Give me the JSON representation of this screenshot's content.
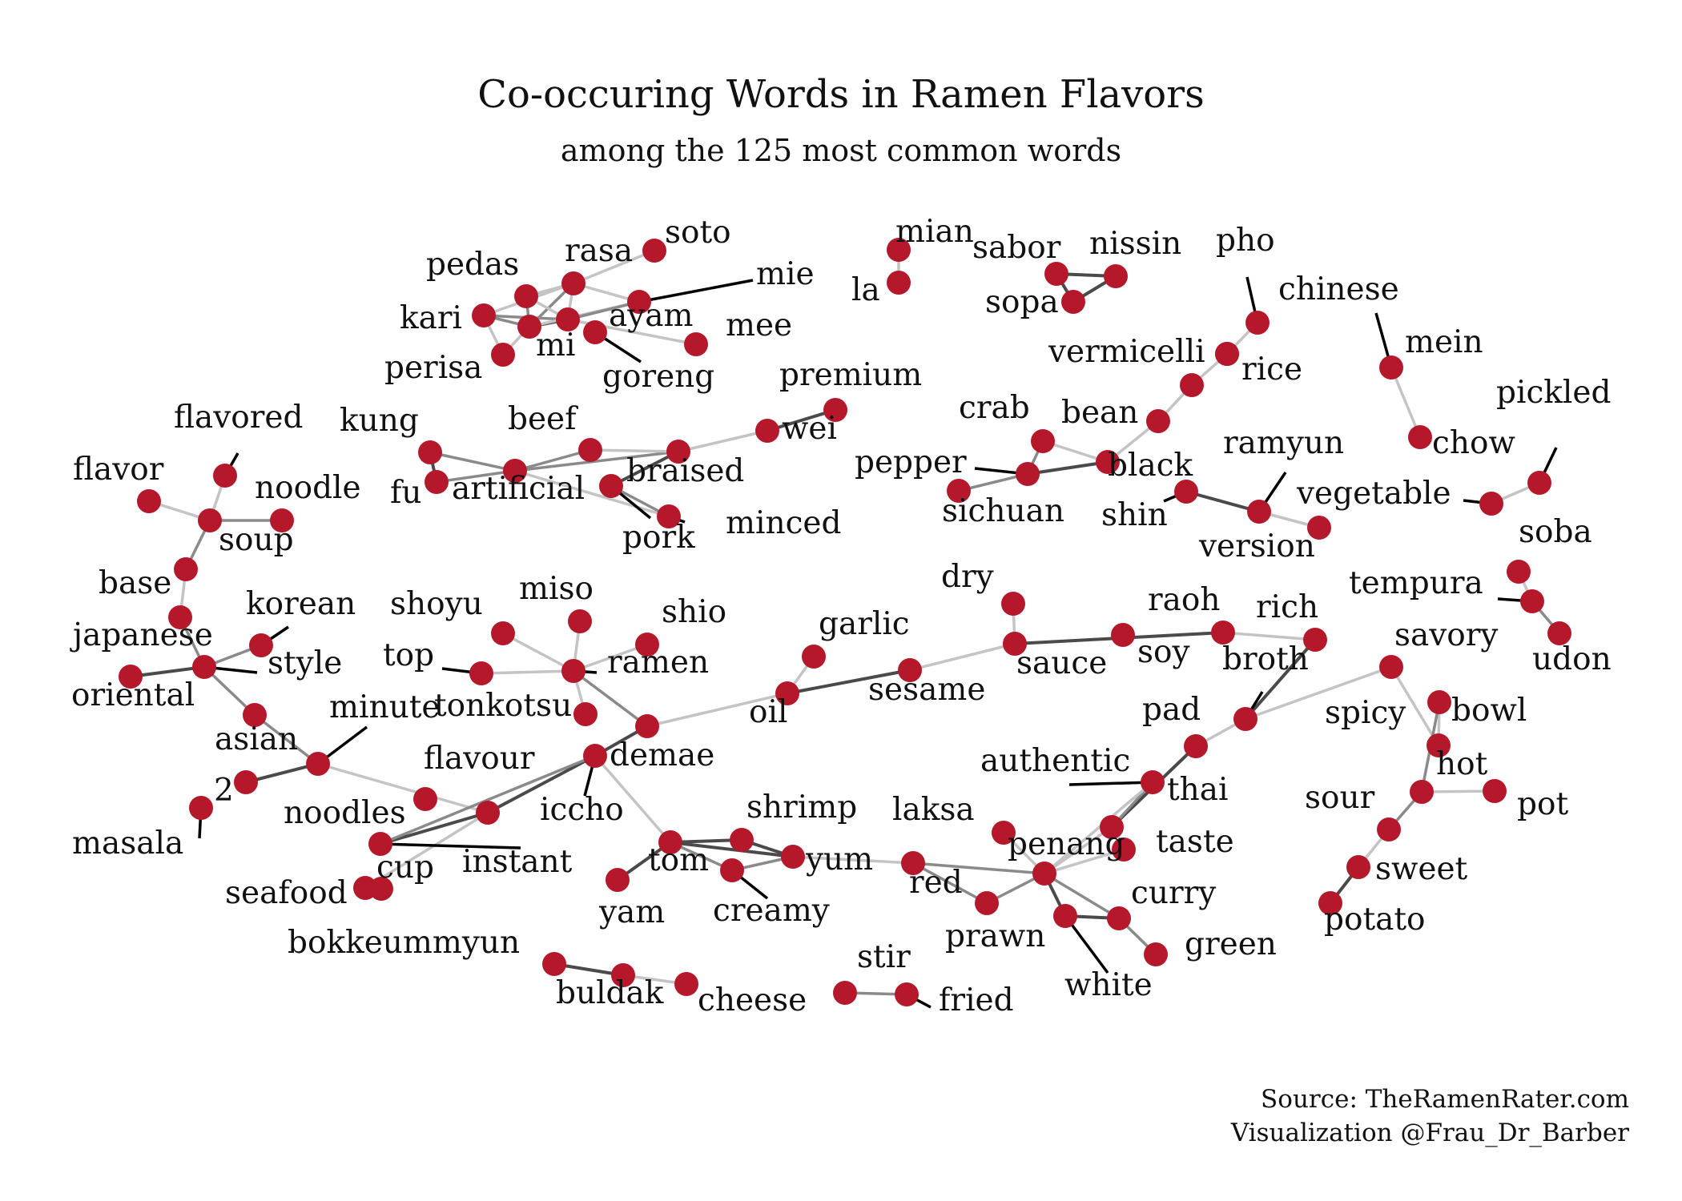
{
  "title": "Co-occuring Words in Ramen Flavors",
  "subtitle": "among the 125 most common words",
  "source": "Source: TheRamenRater.com",
  "credit": "Visualization @Frau_Dr_Barber",
  "colors": {
    "node": "#b5182b",
    "edge_dark": "#4a4a4a",
    "edge_mid": "#8a8a8a",
    "edge_light": "#c4c4c4",
    "leader": "#000000",
    "text": "#111111"
  },
  "nodes": [
    {
      "id": "soto",
      "label": "soto"
    },
    {
      "id": "rasa",
      "label": "rasa"
    },
    {
      "id": "pedas",
      "label": "pedas"
    },
    {
      "id": "mie",
      "label": "mie"
    },
    {
      "id": "kari",
      "label": "kari"
    },
    {
      "id": "ayam",
      "label": "ayam"
    },
    {
      "id": "mee",
      "label": "mee"
    },
    {
      "id": "mi",
      "label": "mi"
    },
    {
      "id": "perisa",
      "label": "perisa"
    },
    {
      "id": "goreng",
      "label": "goreng"
    },
    {
      "id": "mian",
      "label": "mian"
    },
    {
      "id": "la",
      "label": "la"
    },
    {
      "id": "sabor",
      "label": "sabor"
    },
    {
      "id": "nissin",
      "label": "nissin"
    },
    {
      "id": "sopa",
      "label": "sopa"
    },
    {
      "id": "pho",
      "label": "pho"
    },
    {
      "id": "chinese",
      "label": "chinese"
    },
    {
      "id": "vermicelli",
      "label": "vermicelli"
    },
    {
      "id": "rice",
      "label": "rice"
    },
    {
      "id": "mein",
      "label": "mein"
    },
    {
      "id": "chow",
      "label": "chow"
    },
    {
      "id": "premium",
      "label": "premium"
    },
    {
      "id": "wei",
      "label": "wei"
    },
    {
      "id": "flavored",
      "label": "flavored"
    },
    {
      "id": "kung",
      "label": "kung"
    },
    {
      "id": "beef",
      "label": "beef"
    },
    {
      "id": "fu",
      "label": "fu"
    },
    {
      "id": "artificial",
      "label": "artificial"
    },
    {
      "id": "braised",
      "label": "braised"
    },
    {
      "id": "pork",
      "label": "pork"
    },
    {
      "id": "minced",
      "label": "minced"
    },
    {
      "id": "crab",
      "label": "crab"
    },
    {
      "id": "bean",
      "label": "bean"
    },
    {
      "id": "pepper",
      "label": "pepper"
    },
    {
      "id": "black",
      "label": "black"
    },
    {
      "id": "sichuan",
      "label": "sichuan"
    },
    {
      "id": "ramyun",
      "label": "ramyun"
    },
    {
      "id": "shin",
      "label": "shin"
    },
    {
      "id": "version",
      "label": "version"
    },
    {
      "id": "pickled",
      "label": "pickled"
    },
    {
      "id": "vegetable",
      "label": "vegetable"
    },
    {
      "id": "flavor",
      "label": "flavor"
    },
    {
      "id": "noodle",
      "label": "noodle"
    },
    {
      "id": "soup",
      "label": "soup"
    },
    {
      "id": "base",
      "label": "base"
    },
    {
      "id": "japanese",
      "label": "japanese"
    },
    {
      "id": "korean",
      "label": "korean"
    },
    {
      "id": "style",
      "label": "style"
    },
    {
      "id": "oriental",
      "label": "oriental"
    },
    {
      "id": "asian",
      "label": "asian"
    },
    {
      "id": "minute",
      "label": "minute"
    },
    {
      "id": "2",
      "label": "2"
    },
    {
      "id": "masala",
      "label": "masala"
    },
    {
      "id": "shoyu",
      "label": "shoyu"
    },
    {
      "id": "miso",
      "label": "miso"
    },
    {
      "id": "shio",
      "label": "shio"
    },
    {
      "id": "top",
      "label": "top"
    },
    {
      "id": "ramen",
      "label": "ramen"
    },
    {
      "id": "tonkotsu",
      "label": "tonkotsu"
    },
    {
      "id": "demae",
      "label": "demae"
    },
    {
      "id": "iccho",
      "label": "iccho"
    },
    {
      "id": "flavour",
      "label": "flavour"
    },
    {
      "id": "noodles",
      "label": "noodles"
    },
    {
      "id": "instant",
      "label": "instant"
    },
    {
      "id": "cup",
      "label": "cup"
    },
    {
      "id": "seafood",
      "label": "seafood"
    },
    {
      "id": "garlic",
      "label": "garlic"
    },
    {
      "id": "oil",
      "label": "oil"
    },
    {
      "id": "sesame",
      "label": "sesame"
    },
    {
      "id": "dry",
      "label": "dry"
    },
    {
      "id": "sauce",
      "label": "sauce"
    },
    {
      "id": "raoh",
      "label": "raoh"
    },
    {
      "id": "soy",
      "label": "soy"
    },
    {
      "id": "rich",
      "label": "rich"
    },
    {
      "id": "broth",
      "label": "broth"
    },
    {
      "id": "soba",
      "label": "soba"
    },
    {
      "id": "tempura",
      "label": "tempura"
    },
    {
      "id": "udon",
      "label": "udon"
    },
    {
      "id": "savory",
      "label": "savory"
    },
    {
      "id": "spicy",
      "label": "spicy"
    },
    {
      "id": "bowl",
      "label": "bowl"
    },
    {
      "id": "hot",
      "label": "hot"
    },
    {
      "id": "pot",
      "label": "pot"
    },
    {
      "id": "sour",
      "label": "sour"
    },
    {
      "id": "sweet",
      "label": "sweet"
    },
    {
      "id": "potato",
      "label": "potato"
    },
    {
      "id": "pad",
      "label": "pad"
    },
    {
      "id": "authentic",
      "label": "authentic"
    },
    {
      "id": "thai",
      "label": "thai"
    },
    {
      "id": "taste",
      "label": "taste"
    },
    {
      "id": "penang",
      "label": "penang"
    },
    {
      "id": "laksa",
      "label": "laksa"
    },
    {
      "id": "red",
      "label": "red"
    },
    {
      "id": "prawn",
      "label": "prawn"
    },
    {
      "id": "curry",
      "label": "curry"
    },
    {
      "id": "green",
      "label": "green"
    },
    {
      "id": "white",
      "label": "white"
    },
    {
      "id": "shrimp",
      "label": "shrimp"
    },
    {
      "id": "tom",
      "label": "tom"
    },
    {
      "id": "yum",
      "label": "yum"
    },
    {
      "id": "yam",
      "label": "yam"
    },
    {
      "id": "creamy",
      "label": "creamy"
    },
    {
      "id": "bokkeummyun",
      "label": "bokkeummyun"
    },
    {
      "id": "buldak",
      "label": "buldak"
    },
    {
      "id": "cheese",
      "label": "cheese"
    },
    {
      "id": "stir",
      "label": "stir"
    },
    {
      "id": "fried",
      "label": "fried"
    }
  ],
  "edges": [
    {
      "from": "soto",
      "to": "rasa",
      "strength": "light"
    },
    {
      "from": "rasa",
      "to": "mie",
      "strength": "light"
    },
    {
      "from": "rasa",
      "to": "mi",
      "strength": "mid"
    },
    {
      "from": "rasa",
      "to": "kari",
      "strength": "light"
    },
    {
      "from": "rasa",
      "to": "ayam",
      "strength": "light"
    },
    {
      "from": "pedas",
      "to": "mi",
      "strength": "mid"
    },
    {
      "from": "pedas",
      "to": "rasa",
      "strength": "light"
    },
    {
      "from": "pedas",
      "to": "ayam",
      "strength": "light"
    },
    {
      "from": "kari",
      "to": "mi",
      "strength": "mid"
    },
    {
      "from": "kari",
      "to": "ayam",
      "strength": "mid"
    },
    {
      "from": "kari",
      "to": "perisa",
      "strength": "light"
    },
    {
      "from": "mi",
      "to": "ayam",
      "strength": "dark"
    },
    {
      "from": "mi",
      "to": "mie",
      "strength": "light"
    },
    {
      "from": "mi",
      "to": "perisa",
      "strength": "light"
    },
    {
      "from": "ayam",
      "to": "mee",
      "strength": "light"
    },
    {
      "from": "ayam",
      "to": "mie",
      "strength": "mid"
    },
    {
      "from": "mian",
      "to": "la",
      "strength": "light"
    },
    {
      "from": "sabor",
      "to": "nissin",
      "strength": "dark"
    },
    {
      "from": "sabor",
      "to": "sopa",
      "strength": "dark"
    },
    {
      "from": "sopa",
      "to": "nissin",
      "strength": "dark"
    },
    {
      "from": "pho",
      "to": "rice",
      "strength": "light"
    },
    {
      "from": "rice",
      "to": "vermicelli",
      "strength": "light"
    },
    {
      "from": "vermicelli",
      "to": "bean",
      "strength": "light"
    },
    {
      "from": "bean",
      "to": "black",
      "strength": "light"
    },
    {
      "from": "mein",
      "to": "chow",
      "strength": "light"
    },
    {
      "from": "kung",
      "to": "fu",
      "strength": "dark"
    },
    {
      "from": "kung",
      "to": "artificial",
      "strength": "mid"
    },
    {
      "from": "fu",
      "to": "artificial",
      "strength": "mid"
    },
    {
      "from": "artificial",
      "to": "beef",
      "strength": "mid"
    },
    {
      "from": "artificial",
      "to": "braised",
      "strength": "mid"
    },
    {
      "from": "artificial",
      "to": "minced",
      "strength": "light"
    },
    {
      "from": "beef",
      "to": "braised",
      "strength": "light"
    },
    {
      "from": "braised",
      "to": "wei",
      "strength": "light"
    },
    {
      "from": "wei",
      "to": "premium",
      "strength": "dark"
    },
    {
      "from": "braised",
      "to": "pork",
      "strength": "dark"
    },
    {
      "from": "pork",
      "to": "minced",
      "strength": "mid"
    },
    {
      "from": "crab",
      "to": "black",
      "strength": "light"
    },
    {
      "from": "pepper",
      "to": "black",
      "strength": "dark"
    },
    {
      "from": "crab",
      "to": "pepper",
      "strength": "mid"
    },
    {
      "from": "pepper",
      "to": "sichuan",
      "strength": "mid"
    },
    {
      "from": "shin",
      "to": "ramyun",
      "strength": "dark"
    },
    {
      "from": "ramyun",
      "to": "version",
      "strength": "light"
    },
    {
      "from": "vegetable",
      "to": "pickled",
      "strength": "light"
    },
    {
      "from": "flavor",
      "to": "soup",
      "strength": "light"
    },
    {
      "from": "flavored",
      "to": "soup",
      "strength": "light"
    },
    {
      "from": "soup",
      "to": "noodle",
      "strength": "mid"
    },
    {
      "from": "soup",
      "to": "base",
      "strength": "mid"
    },
    {
      "from": "base",
      "to": "japanese",
      "strength": "light"
    },
    {
      "from": "japanese",
      "to": "style",
      "strength": "mid"
    },
    {
      "from": "style",
      "to": "korean",
      "strength": "mid"
    },
    {
      "from": "style",
      "to": "oriental",
      "strength": "dark"
    },
    {
      "from": "style",
      "to": "asian",
      "strength": "mid"
    },
    {
      "from": "asian",
      "to": "minute",
      "strength": "mid"
    },
    {
      "from": "minute",
      "to": "2",
      "strength": "dark"
    },
    {
      "from": "minute",
      "to": "noodles",
      "strength": "light"
    },
    {
      "from": "noodles",
      "to": "instant",
      "strength": "dark"
    },
    {
      "from": "noodles",
      "to": "iccho",
      "strength": "dark"
    },
    {
      "from": "instant",
      "to": "iccho",
      "strength": "mid"
    },
    {
      "from": "noodles",
      "to": "cup",
      "strength": "light"
    },
    {
      "from": "cup",
      "to": "seafood",
      "strength": "light"
    },
    {
      "from": "shoyu",
      "to": "ramen",
      "strength": "light"
    },
    {
      "from": "miso",
      "to": "ramen",
      "strength": "light"
    },
    {
      "from": "shio",
      "to": "ramen",
      "strength": "light"
    },
    {
      "from": "top",
      "to": "ramen",
      "strength": "light"
    },
    {
      "from": "tonkotsu",
      "to": "ramen",
      "strength": "light"
    },
    {
      "from": "ramen",
      "to": "demae",
      "strength": "mid"
    },
    {
      "from": "demae",
      "to": "iccho",
      "strength": "dark"
    },
    {
      "from": "demae",
      "to": "oil",
      "strength": "light"
    },
    {
      "from": "iccho",
      "to": "tom",
      "strength": "light"
    },
    {
      "from": "garlic",
      "to": "oil",
      "strength": "light"
    },
    {
      "from": "oil",
      "to": "sesame",
      "strength": "dark"
    },
    {
      "from": "sesame",
      "to": "sauce",
      "strength": "light"
    },
    {
      "from": "dry",
      "to": "sauce",
      "strength": "light"
    },
    {
      "from": "sauce",
      "to": "soy",
      "strength": "dark"
    },
    {
      "from": "soy",
      "to": "rich",
      "strength": "light"
    },
    {
      "from": "rich",
      "to": "broth",
      "strength": "dark"
    },
    {
      "from": "broth",
      "to": "savory",
      "strength": "light"
    },
    {
      "from": "savory",
      "to": "bowl",
      "strength": "light"
    },
    {
      "from": "bowl",
      "to": "spicy",
      "strength": "light"
    },
    {
      "from": "spicy",
      "to": "hot",
      "strength": "mid"
    },
    {
      "from": "hot",
      "to": "pot",
      "strength": "light"
    },
    {
      "from": "hot",
      "to": "sour",
      "strength": "mid"
    },
    {
      "from": "sour",
      "to": "sweet",
      "strength": "light"
    },
    {
      "from": "sweet",
      "to": "potato",
      "strength": "dark"
    },
    {
      "from": "soba",
      "to": "tempura",
      "strength": "light"
    },
    {
      "from": "tempura",
      "to": "udon",
      "strength": "mid"
    },
    {
      "from": "pad",
      "to": "thai",
      "strength": "dark"
    },
    {
      "from": "thai",
      "to": "authentic",
      "strength": "mid"
    },
    {
      "from": "authentic",
      "to": "penang",
      "strength": "light"
    },
    {
      "from": "thai",
      "to": "penang",
      "strength": "light"
    },
    {
      "from": "broth",
      "to": "pad",
      "strength": "light"
    },
    {
      "from": "penang",
      "to": "taste",
      "strength": "light"
    },
    {
      "from": "laksa",
      "to": "penang",
      "strength": "light"
    },
    {
      "from": "red",
      "to": "penang",
      "strength": "mid"
    },
    {
      "from": "penang",
      "to": "prawn",
      "strength": "mid"
    },
    {
      "from": "penang",
      "to": "curry",
      "strength": "mid"
    },
    {
      "from": "penang",
      "to": "white",
      "strength": "dark"
    },
    {
      "from": "white",
      "to": "curry",
      "strength": "dark"
    },
    {
      "from": "curry",
      "to": "green",
      "strength": "mid"
    },
    {
      "from": "tom",
      "to": "yum",
      "strength": "dark"
    },
    {
      "from": "tom",
      "to": "shrimp",
      "strength": "dark"
    },
    {
      "from": "shrimp",
      "to": "yum",
      "strength": "dark"
    },
    {
      "from": "tom",
      "to": "creamy",
      "strength": "mid"
    },
    {
      "from": "creamy",
      "to": "yum",
      "strength": "mid"
    },
    {
      "from": "tom",
      "to": "yam",
      "strength": "dark"
    },
    {
      "from": "yum",
      "to": "red",
      "strength": "light"
    },
    {
      "from": "red",
      "to": "prawn",
      "strength": "mid"
    },
    {
      "from": "bokkeummyun",
      "to": "buldak",
      "strength": "dark"
    },
    {
      "from": "buldak",
      "to": "cheese",
      "strength": "light"
    },
    {
      "from": "stir",
      "to": "fried",
      "strength": "mid"
    }
  ]
}
